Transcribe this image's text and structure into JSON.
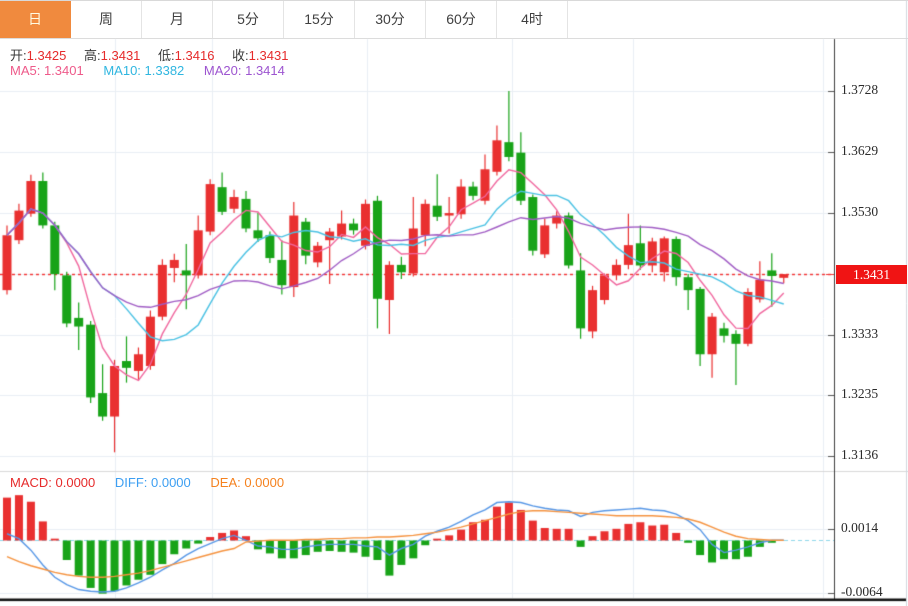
{
  "toolbar": {
    "tabs": [
      {
        "label": "日",
        "active": true
      },
      {
        "label": "周",
        "active": false
      },
      {
        "label": "月",
        "active": false
      },
      {
        "label": "5分",
        "active": false
      },
      {
        "label": "15分",
        "active": false
      },
      {
        "label": "30分",
        "active": false
      },
      {
        "label": "60分",
        "active": false
      },
      {
        "label": "4时",
        "active": false
      }
    ]
  },
  "legend": {
    "open_label": "开:",
    "open": "1.3425",
    "high_label": "高:",
    "high": "1.3431",
    "low_label": "低:",
    "low": "1.3416",
    "close_label": "收:",
    "close": "1.3431",
    "ma5": "MA5: 1.3401",
    "ma10": "MA10: 1.3382",
    "ma20": "MA20: 1.3414",
    "macd": "MACD: 0.0000",
    "diff": "DIFF: 0.0000",
    "dea": "DEA: 0.0000"
  },
  "price_tag": {
    "value": "1.3431"
  },
  "colors": {
    "up": "#e93030",
    "down": "#18a318",
    "ma5": "#f0679e",
    "ma10": "#49c1e3",
    "ma20": "#a05cc4",
    "diff_line": "#5596e6",
    "dea_line": "#f5923e",
    "price_line": "#f23030",
    "tag_bg": "#f01414",
    "zero_line": "#8ed7ea",
    "grid": "#e9eef4",
    "active_tab": "#f08a3e",
    "axis_line": "#3c3c3c",
    "bottom_bar": "#141414"
  },
  "chart_data": [
    {
      "type": "candlestick",
      "title": "daily candlestick with MA5/MA10/MA20",
      "ohlc_display": {
        "open": 1.3425,
        "high": 1.3431,
        "low": 1.3416,
        "close": 1.3431
      },
      "ma_display": {
        "ma5": 1.3401,
        "ma10": 1.3382,
        "ma20": 1.3414
      },
      "ma_periods": [
        5,
        10,
        20
      ],
      "y_ticks": [
        "1.3728",
        "1.3629",
        "1.3530",
        "1.3431",
        "1.3333",
        "1.3235",
        "1.3136"
      ],
      "ylim": [
        1.3136,
        1.3728
      ],
      "price_line": 1.3431,
      "grid": true,
      "legend_position": "top-left",
      "candles_format": [
        "open",
        "high",
        "low",
        "close"
      ],
      "candles": [
        [
          1.3405,
          1.351,
          1.3398,
          1.3494
        ],
        [
          1.3486,
          1.3545,
          1.348,
          1.3534
        ],
        [
          1.3529,
          1.3592,
          1.3524,
          1.3582
        ],
        [
          1.3582,
          1.3596,
          1.3505,
          1.351
        ],
        [
          1.351,
          1.3516,
          1.3405,
          1.3431
        ],
        [
          1.3429,
          1.3435,
          1.3345,
          1.3351
        ],
        [
          1.336,
          1.3385,
          1.3308,
          1.3346
        ],
        [
          1.3349,
          1.3355,
          1.3222,
          1.3231
        ],
        [
          1.3238,
          1.3285,
          1.3193,
          1.32
        ],
        [
          1.32,
          1.3292,
          1.3142,
          1.3282
        ],
        [
          1.329,
          1.333,
          1.3255,
          1.3279
        ],
        [
          1.3274,
          1.3312,
          1.3258,
          1.3301
        ],
        [
          1.3282,
          1.3372,
          1.3276,
          1.3362
        ],
        [
          1.3362,
          1.3455,
          1.3356,
          1.3446
        ],
        [
          1.3441,
          1.3464,
          1.3418,
          1.3454
        ],
        [
          1.3437,
          1.348,
          1.3374,
          1.3429
        ],
        [
          1.3429,
          1.3526,
          1.3424,
          1.3502
        ],
        [
          1.35,
          1.3585,
          1.3494,
          1.3577
        ],
        [
          1.3572,
          1.3596,
          1.3527,
          1.3532
        ],
        [
          1.3537,
          1.3568,
          1.353,
          1.3556
        ],
        [
          1.3553,
          1.3566,
          1.3499,
          1.3505
        ],
        [
          1.3502,
          1.353,
          1.3483,
          1.3489
        ],
        [
          1.3494,
          1.35,
          1.3449,
          1.3457
        ],
        [
          1.3454,
          1.3486,
          1.3398,
          1.3413
        ],
        [
          1.341,
          1.3548,
          1.3394,
          1.3526
        ],
        [
          1.3516,
          1.3522,
          1.3447,
          1.3461
        ],
        [
          1.345,
          1.3483,
          1.3442,
          1.3477
        ],
        [
          1.3486,
          1.3506,
          1.3415,
          1.35
        ],
        [
          1.3492,
          1.3534,
          1.3487,
          1.3513
        ],
        [
          1.3513,
          1.3521,
          1.3495,
          1.3502
        ],
        [
          1.3477,
          1.3552,
          1.3471,
          1.3545
        ],
        [
          1.355,
          1.3558,
          1.3343,
          1.3391
        ],
        [
          1.3389,
          1.3452,
          1.3334,
          1.3446
        ],
        [
          1.3446,
          1.3459,
          1.3423,
          1.3434
        ],
        [
          1.3432,
          1.3556,
          1.3427,
          1.3505
        ],
        [
          1.3494,
          1.3552,
          1.3476,
          1.3545
        ],
        [
          1.3542,
          1.3593,
          1.3517,
          1.3524
        ],
        [
          1.3526,
          1.3556,
          1.3497,
          1.353
        ],
        [
          1.3528,
          1.3585,
          1.3521,
          1.3573
        ],
        [
          1.3573,
          1.3581,
          1.3551,
          1.3558
        ],
        [
          1.355,
          1.3625,
          1.3544,
          1.3601
        ],
        [
          1.3597,
          1.3672,
          1.3591,
          1.3648
        ],
        [
          1.3645,
          1.3728,
          1.3614,
          1.3621
        ],
        [
          1.3628,
          1.3661,
          1.3543,
          1.355
        ],
        [
          1.3556,
          1.356,
          1.3461,
          1.3469
        ],
        [
          1.3463,
          1.3521,
          1.3457,
          1.351
        ],
        [
          1.3513,
          1.3533,
          1.3505,
          1.3526
        ],
        [
          1.3526,
          1.3531,
          1.344,
          1.3445
        ],
        [
          1.3437,
          1.3465,
          1.3326,
          1.3343
        ],
        [
          1.3338,
          1.3412,
          1.3327,
          1.3405
        ],
        [
          1.3389,
          1.3432,
          1.3382,
          1.3429
        ],
        [
          1.3429,
          1.3455,
          1.3421,
          1.3446
        ],
        [
          1.3446,
          1.3529,
          1.3439,
          1.3478
        ],
        [
          1.3481,
          1.351,
          1.3438,
          1.3445
        ],
        [
          1.3445,
          1.349,
          1.3434,
          1.3484
        ],
        [
          1.3434,
          1.3492,
          1.3419,
          1.3489
        ],
        [
          1.3488,
          1.3492,
          1.3412,
          1.3426
        ],
        [
          1.3426,
          1.3431,
          1.3373,
          1.3405
        ],
        [
          1.3407,
          1.341,
          1.3282,
          1.3301
        ],
        [
          1.3301,
          1.3368,
          1.3263,
          1.3362
        ],
        [
          1.3343,
          1.3352,
          1.332,
          1.3331
        ],
        [
          1.3334,
          1.334,
          1.3251,
          1.3318
        ],
        [
          1.3318,
          1.3408,
          1.3314,
          1.3402
        ],
        [
          1.339,
          1.3452,
          1.3385,
          1.3422
        ],
        [
          1.3437,
          1.3465,
          1.3378,
          1.3428
        ],
        [
          1.3425,
          1.3431,
          1.3416,
          1.3431
        ]
      ]
    },
    {
      "type": "bar",
      "title": "MACD(12,26,9)",
      "y_ticks": [
        "0.0014",
        "-0.0064"
      ],
      "ylim": [
        -0.0072,
        0.0082
      ],
      "zero_line": 0,
      "macd_display": {
        "macd": 0.0,
        "diff": 0.0,
        "dea": 0.0
      },
      "values": [
        0.0052,
        0.0055,
        0.0047,
        0.0023,
        0.0002,
        -0.0024,
        -0.0043,
        -0.0058,
        -0.0065,
        -0.0062,
        -0.0055,
        -0.0048,
        -0.0042,
        -0.0029,
        -0.0017,
        -0.001,
        -0.0004,
        0.0004,
        0.0009,
        0.0012,
        0.0005,
        -0.0011,
        -0.0016,
        -0.0022,
        -0.0022,
        -0.0018,
        -0.0014,
        -0.0013,
        -0.0014,
        -0.0015,
        -0.002,
        -0.0024,
        -0.0043,
        -0.003,
        -0.0022,
        -0.0006,
        0.0002,
        0.0006,
        0.0013,
        0.0022,
        0.0025,
        0.0041,
        0.0046,
        0.0037,
        0.0024,
        0.0015,
        0.0014,
        0.0014,
        -0.0008,
        0.0005,
        0.0011,
        0.0014,
        0.002,
        0.0022,
        0.0018,
        0.0019,
        0.0009,
        -0.0003,
        -0.0018,
        -0.0027,
        -0.0023,
        -0.0023,
        -0.002,
        -0.0008,
        -0.0003,
        0.0
      ],
      "series": [
        {
          "name": "DIFF",
          "values": [
            0.0008,
            0.0002,
            -0.0012,
            -0.003,
            -0.0045,
            -0.0054,
            -0.006,
            -0.0062,
            -0.0063,
            -0.0062,
            -0.0058,
            -0.0052,
            -0.0045,
            -0.0036,
            -0.0028,
            -0.0018,
            -0.001,
            -0.0004,
            0.0002,
            0.0006,
            0.0,
            -0.0007,
            -0.0008,
            -0.0011,
            -0.0011,
            -0.0008,
            -0.0006,
            -0.0005,
            -0.0005,
            -0.0005,
            -0.0007,
            -0.0008,
            -0.0018,
            -0.001,
            -0.0005,
            0.0005,
            0.0011,
            0.0016,
            0.0023,
            0.0031,
            0.0037,
            0.0046,
            0.0047,
            0.0046,
            0.0042,
            0.0039,
            0.0037,
            0.0036,
            0.0029,
            0.0034,
            0.0036,
            0.0037,
            0.0038,
            0.0039,
            0.0037,
            0.0036,
            0.0032,
            0.0024,
            0.0013,
            -0.0005,
            -0.0015,
            -0.0012,
            -0.0008,
            -0.0003,
            0.0,
            0.0
          ]
        },
        {
          "name": "DEA",
          "values": [
            -0.002,
            -0.0026,
            -0.0031,
            -0.0035,
            -0.0039,
            -0.0042,
            -0.0044,
            -0.0045,
            -0.0045,
            -0.0044,
            -0.0042,
            -0.004,
            -0.0037,
            -0.0033,
            -0.0029,
            -0.0025,
            -0.0021,
            -0.0017,
            -0.0013,
            -0.001,
            -0.0002,
            -0.0001,
            0.0,
            0.0,
            0.0,
            0.0001,
            0.0001,
            0.0002,
            0.0002,
            0.0003,
            0.0003,
            0.0004,
            0.0004,
            0.0005,
            0.0006,
            0.0008,
            0.001,
            0.0013,
            0.0016,
            0.002,
            0.0024,
            0.0028,
            0.0032,
            0.0035,
            0.0036,
            0.0036,
            0.0035,
            0.0034,
            0.0033,
            0.0032,
            0.0031,
            0.003,
            0.003,
            0.003,
            0.003,
            0.0029,
            0.0028,
            0.0026,
            0.0022,
            0.0016,
            0.001,
            0.0005,
            0.0002,
            0.0001,
            0.0,
            0.0
          ]
        }
      ]
    }
  ]
}
